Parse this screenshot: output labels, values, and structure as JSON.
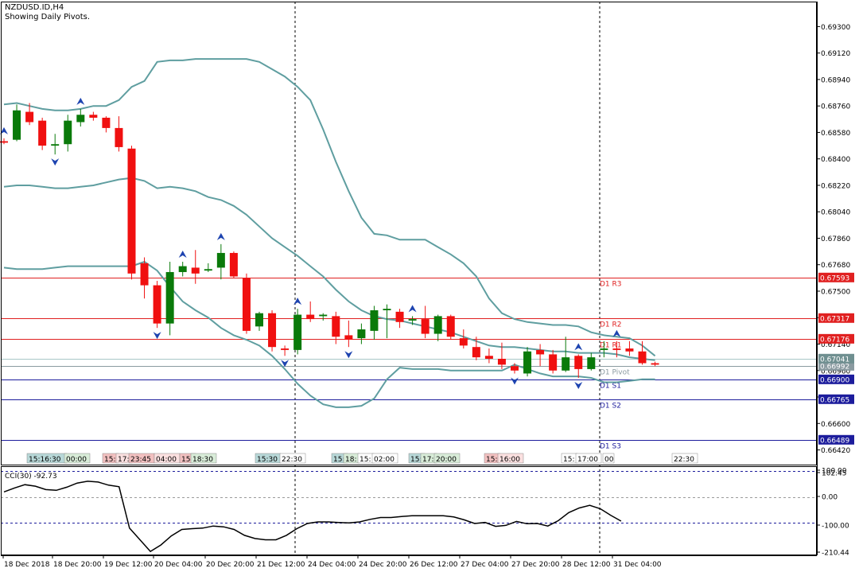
{
  "header": {
    "symbol": "NZDUSD.ID,H4",
    "note": "Showing Daily Pivots."
  },
  "chart_data": [
    {
      "type": "candlestick",
      "title": "NZDUSD.ID,H4",
      "subtitle": "Showing Daily Pivots.",
      "ylim": [
        0.6632,
        0.6947
      ],
      "price_ticks": [
        "0.69300",
        "0.69120",
        "0.68940",
        "0.68760",
        "0.68580",
        "0.68400",
        "0.68220",
        "0.68040",
        "0.67860",
        "0.67680",
        "0.67500",
        "0.67320",
        "0.67140",
        "0.66960",
        "0.66780",
        "0.66600",
        "0.66420"
      ],
      "time_labels": [
        "18 Dec 2018",
        "18 Dec 20:00",
        "19 Dec 12:00",
        "20 Dec 04:00",
        "20 Dec 20:00",
        "21 Dec 12:00",
        "24 Dec 04:00",
        "24 Dec 20:00",
        "26 Dec 12:00",
        "27 Dec 04:00",
        "27 Dec 20:00",
        "28 Dec 12:00",
        "31 Dec 04:00"
      ],
      "session_labels": [
        {
          "text": "15:16:30",
          "color": "#b8d8d8"
        },
        {
          "text": "00:00",
          "color": "#d8ecd8"
        },
        {
          "text": "15:",
          "color": "#f2c0c0"
        },
        {
          "text": "17:",
          "color": "#fbe0e0"
        },
        {
          "text": "23:45",
          "color": "#f2c0c0"
        },
        {
          "text": "04:00",
          "color": "#fbe0e0"
        },
        {
          "text": "15:",
          "color": "#f2c0c0"
        },
        {
          "text": "18:30",
          "color": "#d8ecd8"
        },
        {
          "text": "15:30",
          "color": "#b8d8d8"
        },
        {
          "text": "22:30",
          "color": "#ffffff"
        },
        {
          "text": "15:",
          "color": "#b8d8d8"
        },
        {
          "text": "18:",
          "color": "#d8ecd8"
        },
        {
          "text": "15:",
          "color": "#ffffff"
        },
        {
          "text": "02:00",
          "color": "#ffffff"
        },
        {
          "text": "15:",
          "color": "#b8d8d8"
        },
        {
          "text": "17:",
          "color": "#d8ecd8"
        },
        {
          "text": "20:00",
          "color": "#d8ecd8"
        },
        {
          "text": "15:",
          "color": "#f2c0c0"
        },
        {
          "text": "16:00",
          "color": "#fbe0e0"
        },
        {
          "text": "15:",
          "color": "#ffffff"
        },
        {
          "text": "17:00",
          "color": "#ffffff"
        },
        {
          "text": "00",
          "color": "#ffffff"
        },
        {
          "text": "22:30",
          "color": "#ffffff"
        }
      ],
      "pivots": [
        {
          "name": "D1 R3",
          "value": 0.67593,
          "price_label": "0.67593",
          "color": "#e02020"
        },
        {
          "name": "D1 R2",
          "value": 0.67317,
          "price_label": "0.67317",
          "color": "#e02020"
        },
        {
          "name": "D1 R1",
          "value": 0.67176,
          "price_label": "0.67176",
          "color": "#e02020"
        },
        {
          "name": "D1 Pivot",
          "value": 0.66992,
          "price_label": "0.66992",
          "color": "#8a9aa0"
        },
        {
          "name": "D1 S1",
          "value": 0.669,
          "price_label": "0.66900",
          "color": "#1c1c9c"
        },
        {
          "name": "D1 S2",
          "value": 0.66765,
          "price_label": "0.66765",
          "color": "#1c1c9c"
        },
        {
          "name": "D1 S3",
          "value": 0.66489,
          "price_label": "0.66489",
          "color": "#1c1c9c"
        }
      ],
      "current_price": {
        "value": 0.67041,
        "label": "0.67041"
      },
      "colors": {
        "bull": "#0a7a0a",
        "bear": "#f01010",
        "bands": "#5f9ea0",
        "fractal": "#1e44b0"
      },
      "candles": [
        {
          "o": 0.6852,
          "h": 0.6854,
          "l": 0.685,
          "c": 0.6851
        },
        {
          "o": 0.6853,
          "h": 0.6877,
          "l": 0.6852,
          "c": 0.6873
        },
        {
          "o": 0.6872,
          "h": 0.6878,
          "l": 0.6863,
          "c": 0.6865
        },
        {
          "o": 0.6866,
          "h": 0.6868,
          "l": 0.6846,
          "c": 0.6849
        },
        {
          "o": 0.6849,
          "h": 0.6857,
          "l": 0.6843,
          "c": 0.685
        },
        {
          "o": 0.685,
          "h": 0.687,
          "l": 0.6845,
          "c": 0.6866
        },
        {
          "o": 0.6865,
          "h": 0.6874,
          "l": 0.6862,
          "c": 0.687
        },
        {
          "o": 0.687,
          "h": 0.6872,
          "l": 0.6866,
          "c": 0.6868
        },
        {
          "o": 0.6868,
          "h": 0.6869,
          "l": 0.6858,
          "c": 0.6861
        },
        {
          "o": 0.6861,
          "h": 0.6869,
          "l": 0.6845,
          "c": 0.6848
        },
        {
          "o": 0.6847,
          "h": 0.6849,
          "l": 0.6758,
          "c": 0.6762
        },
        {
          "o": 0.6769,
          "h": 0.6773,
          "l": 0.6745,
          "c": 0.6754
        },
        {
          "o": 0.6754,
          "h": 0.6757,
          "l": 0.6725,
          "c": 0.6728
        },
        {
          "o": 0.6728,
          "h": 0.677,
          "l": 0.672,
          "c": 0.6763
        },
        {
          "o": 0.6763,
          "h": 0.677,
          "l": 0.676,
          "c": 0.6767
        },
        {
          "o": 0.6766,
          "h": 0.6778,
          "l": 0.6755,
          "c": 0.6762
        },
        {
          "o": 0.6764,
          "h": 0.6769,
          "l": 0.6763,
          "c": 0.6765
        },
        {
          "o": 0.6766,
          "h": 0.6782,
          "l": 0.6758,
          "c": 0.6776
        },
        {
          "o": 0.6776,
          "h": 0.6777,
          "l": 0.6759,
          "c": 0.676
        },
        {
          "o": 0.6759,
          "h": 0.6762,
          "l": 0.6721,
          "c": 0.6723
        },
        {
          "o": 0.6726,
          "h": 0.6736,
          "l": 0.6723,
          "c": 0.6735
        },
        {
          "o": 0.6735,
          "h": 0.6737,
          "l": 0.6709,
          "c": 0.6712
        },
        {
          "o": 0.6711,
          "h": 0.6713,
          "l": 0.6706,
          "c": 0.671
        },
        {
          "o": 0.671,
          "h": 0.6738,
          "l": 0.6707,
          "c": 0.6734
        },
        {
          "o": 0.6734,
          "h": 0.6743,
          "l": 0.6729,
          "c": 0.6731
        },
        {
          "o": 0.6733,
          "h": 0.6735,
          "l": 0.673,
          "c": 0.6734
        },
        {
          "o": 0.6733,
          "h": 0.6736,
          "l": 0.6714,
          "c": 0.6719
        },
        {
          "o": 0.672,
          "h": 0.673,
          "l": 0.6712,
          "c": 0.6717
        },
        {
          "o": 0.6718,
          "h": 0.6728,
          "l": 0.6714,
          "c": 0.6724
        },
        {
          "o": 0.6723,
          "h": 0.674,
          "l": 0.6717,
          "c": 0.6737
        },
        {
          "o": 0.6737,
          "h": 0.6741,
          "l": 0.6718,
          "c": 0.6738
        },
        {
          "o": 0.6736,
          "h": 0.6738,
          "l": 0.6725,
          "c": 0.6729
        },
        {
          "o": 0.673,
          "h": 0.6733,
          "l": 0.6727,
          "c": 0.6731
        },
        {
          "o": 0.6731,
          "h": 0.674,
          "l": 0.6718,
          "c": 0.6721
        },
        {
          "o": 0.6721,
          "h": 0.6734,
          "l": 0.6716,
          "c": 0.6733
        },
        {
          "o": 0.6733,
          "h": 0.6734,
          "l": 0.6717,
          "c": 0.6719
        },
        {
          "o": 0.6718,
          "h": 0.6724,
          "l": 0.6711,
          "c": 0.6713
        },
        {
          "o": 0.6712,
          "h": 0.6719,
          "l": 0.6703,
          "c": 0.6705
        },
        {
          "o": 0.6706,
          "h": 0.6711,
          "l": 0.6701,
          "c": 0.6704
        },
        {
          "o": 0.6704,
          "h": 0.6715,
          "l": 0.6697,
          "c": 0.67
        },
        {
          "o": 0.6699,
          "h": 0.6701,
          "l": 0.6694,
          "c": 0.6696
        },
        {
          "o": 0.6694,
          "h": 0.6712,
          "l": 0.6692,
          "c": 0.6709
        },
        {
          "o": 0.671,
          "h": 0.6714,
          "l": 0.6699,
          "c": 0.6707
        },
        {
          "o": 0.6707,
          "h": 0.671,
          "l": 0.6694,
          "c": 0.6696
        },
        {
          "o": 0.6696,
          "h": 0.6719,
          "l": 0.6695,
          "c": 0.6705
        },
        {
          "o": 0.6706,
          "h": 0.6707,
          "l": 0.6691,
          "c": 0.6697
        },
        {
          "o": 0.6697,
          "h": 0.6708,
          "l": 0.6696,
          "c": 0.6705
        },
        {
          "o": 0.671,
          "h": 0.6716,
          "l": 0.6705,
          "c": 0.6711
        },
        {
          "o": 0.6711,
          "h": 0.6716,
          "l": 0.6705,
          "c": 0.671
        },
        {
          "o": 0.6711,
          "h": 0.6716,
          "l": 0.6706,
          "c": 0.6709
        },
        {
          "o": 0.6709,
          "h": 0.6716,
          "l": 0.67,
          "c": 0.6701
        },
        {
          "o": 0.6701,
          "h": 0.6702,
          "l": 0.6699,
          "c": 0.67
        }
      ],
      "bollinger": {
        "upper": [
          0.6877,
          0.6878,
          0.6876,
          0.6874,
          0.6873,
          0.6873,
          0.6874,
          0.6876,
          0.6876,
          0.688,
          0.6889,
          0.6893,
          0.6906,
          0.6907,
          0.6907,
          0.6908,
          0.6908,
          0.6908,
          0.6908,
          0.6908,
          0.6906,
          0.6901,
          0.6896,
          0.6889,
          0.688,
          0.686,
          0.6838,
          0.6818,
          0.68,
          0.6789,
          0.6788,
          0.6785,
          0.6785,
          0.6785,
          0.678,
          0.6775,
          0.6769,
          0.676,
          0.6745,
          0.6735,
          0.6731,
          0.6729,
          0.6728,
          0.6727,
          0.6727,
          0.6726,
          0.6722,
          0.672,
          0.6719,
          0.6718,
          0.6713,
          0.6706
        ],
        "middle": [
          0.6821,
          0.6822,
          0.6822,
          0.6821,
          0.682,
          0.682,
          0.6821,
          0.6822,
          0.6824,
          0.6826,
          0.6827,
          0.6825,
          0.682,
          0.6821,
          0.682,
          0.6818,
          0.6814,
          0.6812,
          0.6808,
          0.6802,
          0.6794,
          0.6786,
          0.678,
          0.6774,
          0.6767,
          0.676,
          0.6751,
          0.6743,
          0.6737,
          0.6733,
          0.6731,
          0.673,
          0.6728,
          0.6726,
          0.6724,
          0.6722,
          0.6719,
          0.6716,
          0.6713,
          0.6712,
          0.6712,
          0.6711,
          0.671,
          0.6709,
          0.6709,
          0.6708,
          0.6708,
          0.6708,
          0.6707,
          0.6705,
          0.6704,
          0.6703
        ],
        "lower": [
          0.6766,
          0.6765,
          0.6765,
          0.6765,
          0.6766,
          0.6767,
          0.6767,
          0.6767,
          0.6767,
          0.6767,
          0.6767,
          0.677,
          0.6764,
          0.6753,
          0.6743,
          0.6737,
          0.6732,
          0.6725,
          0.672,
          0.6717,
          0.6713,
          0.6706,
          0.6697,
          0.6687,
          0.6679,
          0.6673,
          0.6671,
          0.6671,
          0.6672,
          0.6677,
          0.669,
          0.6698,
          0.6697,
          0.6697,
          0.6697,
          0.6696,
          0.6696,
          0.6696,
          0.6696,
          0.6696,
          0.67,
          0.6697,
          0.6694,
          0.6692,
          0.6692,
          0.6692,
          0.6691,
          0.6688,
          0.6688,
          0.6689,
          0.669,
          0.669
        ]
      },
      "fractals": {
        "up": [
          0,
          6,
          14,
          17,
          23,
          32,
          45,
          48
        ],
        "down": [
          4,
          12,
          22,
          27,
          40,
          45
        ]
      }
    },
    {
      "type": "line",
      "title": "CCI(30) -92.73",
      "name": "CCI(30)",
      "current": "-92.73",
      "ylim": [
        -225,
        110
      ],
      "ticks": [
        "102.45",
        "100.00",
        "0.00",
        "-100.00",
        "-210.44"
      ],
      "levels": [
        100,
        0,
        -100
      ],
      "values": [
        20,
        35,
        48,
        42,
        29,
        26,
        38,
        54,
        61,
        58,
        46,
        40,
        -120,
        -165,
        -210,
        -185,
        -150,
        -125,
        -122,
        -120,
        -112,
        -115,
        -125,
        -148,
        -160,
        -165,
        -165,
        -148,
        -122,
        -102,
        -96,
        -96,
        -98,
        -100,
        -96,
        -86,
        -79,
        -79,
        -75,
        -72,
        -72,
        -72,
        -72,
        -77,
        -88,
        -102,
        -98,
        -113,
        -109,
        -94,
        -103,
        -102,
        -112,
        -91,
        -60,
        -42,
        -32,
        -45,
        -70,
        -92.73
      ]
    }
  ]
}
